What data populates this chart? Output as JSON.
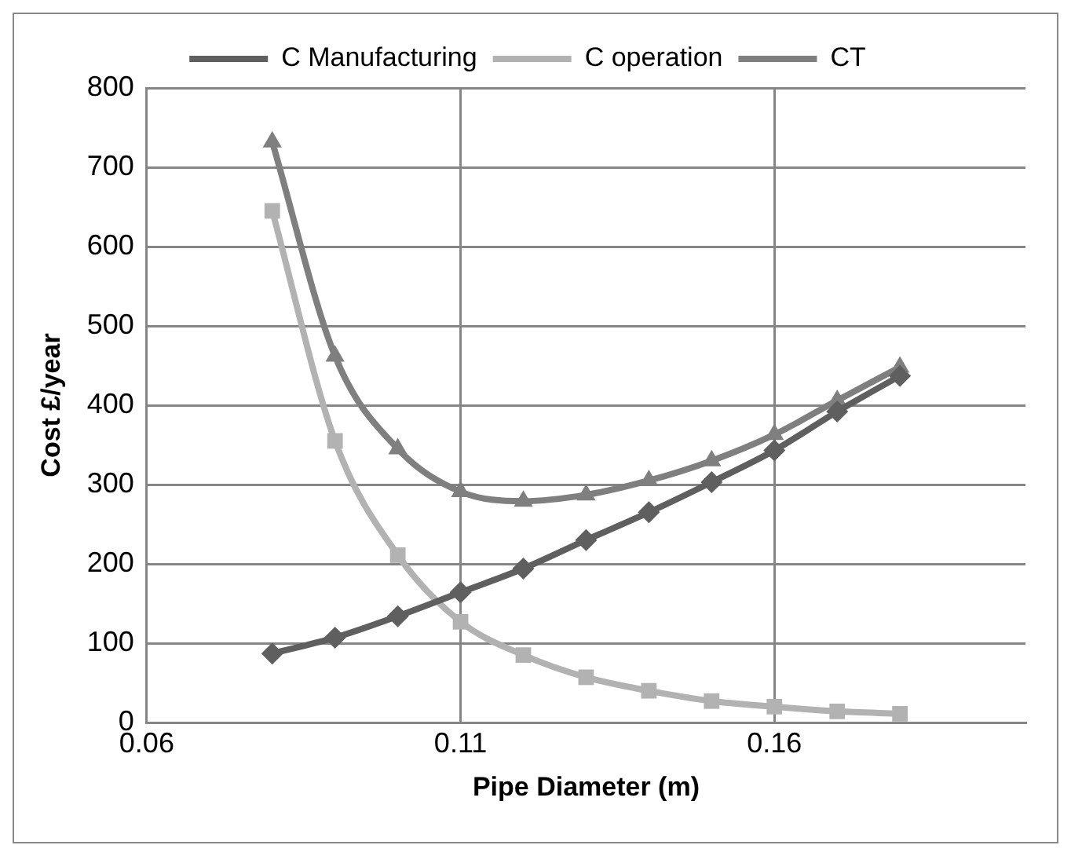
{
  "chart_data": {
    "type": "line",
    "xlabel": "Pipe Diameter (m)",
    "ylabel": "Cost £/year",
    "x": [
      0.08,
      0.09,
      0.1,
      0.11,
      0.12,
      0.13,
      0.14,
      0.15,
      0.16,
      0.17,
      0.18
    ],
    "series": [
      {
        "name": "C Manufacturing",
        "color": "#5f5f5f",
        "marker": "diamond",
        "values": [
          87,
          107,
          134,
          164,
          194,
          230,
          265,
          303,
          343,
          392,
          437
        ]
      },
      {
        "name": "C operation",
        "color": "#b2b2b2",
        "marker": "square",
        "values": [
          645,
          355,
          211,
          127,
          85,
          57,
          40,
          27,
          20,
          14,
          11
        ]
      },
      {
        "name": "CT",
        "color": "#7f7f7f",
        "marker": "triangle",
        "values": [
          732,
          462,
          345,
          291,
          279,
          287,
          305,
          330,
          363,
          406,
          448
        ]
      }
    ],
    "xlim": [
      0.06,
      0.2
    ],
    "xticks": [
      0.06,
      0.11,
      0.16
    ],
    "ylim": [
      0,
      800
    ],
    "yticks": [
      0,
      100,
      200,
      300,
      400,
      500,
      600,
      700,
      800
    ],
    "grid": true,
    "legend": "top",
    "line_style": "solid"
  }
}
